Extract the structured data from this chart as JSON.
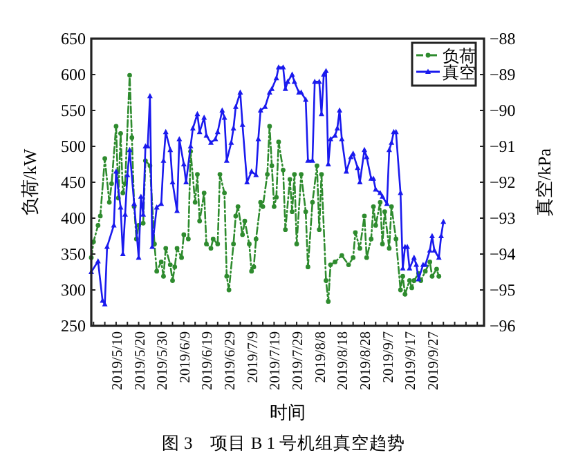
{
  "chart_data": {
    "type": "line",
    "title": "图 3　项目 B 1 号机组真空趋势",
    "xlabel": "时间",
    "ylabel": "负荷/kW",
    "y2label": "真空/kPa",
    "xlim": [
      "2019-04-29",
      "2019-10-20"
    ],
    "xticks": [
      {
        "value": "2019-04-30",
        "label": null
      },
      {
        "value": "2019-05-05",
        "label": null
      },
      {
        "value": "2019-05-10",
        "label": "2019/5/10"
      },
      {
        "value": "2019-05-15",
        "label": null
      },
      {
        "value": "2019-05-20",
        "label": "2019/5/20"
      },
      {
        "value": "2019-05-25",
        "label": null
      },
      {
        "value": "2019-05-30",
        "label": "2019/5/30"
      },
      {
        "value": "2019-06-04",
        "label": null
      },
      {
        "value": "2019-06-09",
        "label": "2019/6/9"
      },
      {
        "value": "2019-06-14",
        "label": null
      },
      {
        "value": "2019-06-19",
        "label": "2019/6/19"
      },
      {
        "value": "2019-06-24",
        "label": null
      },
      {
        "value": "2019-06-29",
        "label": "2019/6/29"
      },
      {
        "value": "2019-07-04",
        "label": null
      },
      {
        "value": "2019-07-09",
        "label": "2019/7/9"
      },
      {
        "value": "2019-07-14",
        "label": null
      },
      {
        "value": "2019-07-19",
        "label": "2019/7/19"
      },
      {
        "value": "2019-07-24",
        "label": null
      },
      {
        "value": "2019-07-29",
        "label": "2019/7/29"
      },
      {
        "value": "2019-08-03",
        "label": null
      },
      {
        "value": "2019-08-08",
        "label": "2019/8/8"
      },
      {
        "value": "2019-08-13",
        "label": null
      },
      {
        "value": "2019-08-18",
        "label": "2019/8/18"
      },
      {
        "value": "2019-08-23",
        "label": null
      },
      {
        "value": "2019-08-28",
        "label": "2019/8/28"
      },
      {
        "value": "2019-09-02",
        "label": null
      },
      {
        "value": "2019-09-07",
        "label": "2019/9/7"
      },
      {
        "value": "2019-09-12",
        "label": null
      },
      {
        "value": "2019-09-17",
        "label": "2019/9/17"
      },
      {
        "value": "2019-09-22",
        "label": null
      },
      {
        "value": "2019-09-27",
        "label": "2019/9/27"
      },
      {
        "value": "2019-10-02",
        "label": null
      },
      {
        "value": "2019-10-07",
        "label": null
      },
      {
        "value": "2019-10-12",
        "label": null
      },
      {
        "value": "2019-10-17",
        "label": null
      }
    ],
    "ylim": [
      250,
      650
    ],
    "yticks": [
      250,
      300,
      350,
      400,
      450,
      500,
      550,
      600,
      650
    ],
    "y2lim": [
      -96,
      -88
    ],
    "y2ticks": [
      {
        "value": -96,
        "label": "−96"
      },
      {
        "value": -95,
        "label": "−95"
      },
      {
        "value": -94,
        "label": "−94"
      },
      {
        "value": -93,
        "label": "−93"
      },
      {
        "value": -92,
        "label": "−92"
      },
      {
        "value": -91,
        "label": "−91"
      },
      {
        "value": -90,
        "label": "−90"
      },
      {
        "value": -89,
        "label": "−89"
      },
      {
        "value": -88,
        "label": "−88"
      }
    ],
    "legend": "top right",
    "grid": false,
    "series": [
      {
        "name": "负荷",
        "color": "#2e8b2e",
        "line_style": "dashed",
        "marker": "circle",
        "x": [
          "2019-04-29",
          "2019-04-30",
          "2019-05-02",
          "2019-05-03",
          "2019-05-05",
          "2019-05-07",
          "2019-05-08",
          "2019-05-10",
          "2019-05-11",
          "2019-05-12",
          "2019-05-13",
          "2019-05-14",
          "2019-05-16",
          "2019-05-17",
          "2019-05-18",
          "2019-05-19",
          "2019-05-20",
          "2019-05-22",
          "2019-05-23",
          "2019-05-25",
          "2019-05-27",
          "2019-05-28",
          "2019-05-30",
          "2019-05-31",
          "2019-06-01",
          "2019-06-03",
          "2019-06-04",
          "2019-06-05",
          "2019-06-06",
          "2019-06-08",
          "2019-06-09",
          "2019-06-11",
          "2019-06-12",
          "2019-06-14",
          "2019-06-15",
          "2019-06-16",
          "2019-06-18",
          "2019-06-19",
          "2019-06-21",
          "2019-06-22",
          "2019-06-24",
          "2019-06-25",
          "2019-06-27",
          "2019-06-28",
          "2019-06-29",
          "2019-07-01",
          "2019-07-02",
          "2019-07-03",
          "2019-07-05",
          "2019-07-06",
          "2019-07-08",
          "2019-07-09",
          "2019-07-10",
          "2019-07-11",
          "2019-07-13",
          "2019-07-14",
          "2019-07-16",
          "2019-07-17",
          "2019-07-18",
          "2019-07-19",
          "2019-07-20",
          "2019-07-21",
          "2019-07-23",
          "2019-07-24",
          "2019-07-26",
          "2019-07-27",
          "2019-07-28",
          "2019-07-29",
          "2019-07-31",
          "2019-08-02",
          "2019-08-03",
          "2019-08-05",
          "2019-08-07",
          "2019-08-08",
          "2019-08-09",
          "2019-08-11",
          "2019-08-12",
          "2019-08-13",
          "2019-08-15",
          "2019-08-18",
          "2019-08-21",
          "2019-08-23",
          "2019-08-24",
          "2019-08-26",
          "2019-08-28",
          "2019-08-29",
          "2019-08-31",
          "2019-09-01",
          "2019-09-02",
          "2019-09-04",
          "2019-09-05",
          "2019-09-06",
          "2019-09-08",
          "2019-09-09",
          "2019-09-11",
          "2019-09-13",
          "2019-09-14",
          "2019-09-15",
          "2019-09-17",
          "2019-09-18",
          "2019-09-19",
          "2019-09-21",
          "2019-09-22",
          "2019-09-24",
          "2019-09-26",
          "2019-09-27",
          "2019-09-29",
          "2019-09-30"
        ],
        "values": [
          345,
          367,
          390,
          403,
          483,
          422,
          448,
          528,
          428,
          518,
          435,
          448,
          599,
          512,
          416,
          371,
          390,
          393,
          480,
          473,
          364,
          326,
          339,
          319,
          358,
          335,
          313,
          332,
          358,
          345,
          377,
          371,
          493,
          422,
          461,
          396,
          435,
          364,
          358,
          371,
          364,
          461,
          435,
          319,
          300,
          364,
          403,
          416,
          377,
          396,
          364,
          326,
          332,
          371,
          422,
          416,
          461,
          528,
          473,
          416,
          429,
          506,
          467,
          384,
          454,
          409,
          461,
          364,
          461,
          409,
          332,
          422,
          473,
          384,
          461,
          313,
          284,
          335,
          339,
          348,
          335,
          345,
          380,
          358,
          403,
          345,
          371,
          416,
          390,
          422,
          364,
          409,
          358,
          416,
          371,
          300,
          319,
          294,
          313,
          303,
          313,
          323,
          313,
          326,
          339,
          319,
          329,
          319
        ]
      },
      {
        "name": "真空",
        "color": "#1a1aee",
        "line_style": "solid",
        "marker": "triangle",
        "axis": "y2",
        "x": [
          "2019-04-29",
          "2019-05-02",
          "2019-05-04",
          "2019-05-05",
          "2019-05-06",
          "2019-05-09",
          "2019-05-10",
          "2019-05-12",
          "2019-05-13",
          "2019-05-14",
          "2019-05-15",
          "2019-05-16",
          "2019-05-18",
          "2019-05-20",
          "2019-05-21",
          "2019-05-22",
          "2019-05-23",
          "2019-05-24",
          "2019-05-25",
          "2019-05-26",
          "2019-05-28",
          "2019-05-30",
          "2019-05-31",
          "2019-06-01",
          "2019-06-03",
          "2019-06-04",
          "2019-06-06",
          "2019-06-07",
          "2019-06-09",
          "2019-06-10",
          "2019-06-12",
          "2019-06-13",
          "2019-06-15",
          "2019-06-16",
          "2019-06-18",
          "2019-06-19",
          "2019-06-21",
          "2019-06-23",
          "2019-06-24",
          "2019-06-26",
          "2019-06-27",
          "2019-06-28",
          "2019-06-30",
          "2019-07-01",
          "2019-07-02",
          "2019-07-04",
          "2019-07-05",
          "2019-07-07",
          "2019-07-09",
          "2019-07-11",
          "2019-07-12",
          "2019-07-13",
          "2019-07-15",
          "2019-07-17",
          "2019-07-18",
          "2019-07-20",
          "2019-07-21",
          "2019-07-23",
          "2019-07-24",
          "2019-07-25",
          "2019-07-27",
          "2019-07-28",
          "2019-07-30",
          "2019-07-31",
          "2019-08-02",
          "2019-08-03",
          "2019-08-05",
          "2019-08-06",
          "2019-08-08",
          "2019-08-09",
          "2019-08-10",
          "2019-08-11",
          "2019-08-12",
          "2019-08-13",
          "2019-08-15",
          "2019-08-16",
          "2019-08-17",
          "2019-08-18",
          "2019-08-20",
          "2019-08-22",
          "2019-08-23",
          "2019-08-25",
          "2019-08-26",
          "2019-08-28",
          "2019-08-29",
          "2019-08-31",
          "2019-09-01",
          "2019-09-02",
          "2019-09-04",
          "2019-09-05",
          "2019-09-07",
          "2019-09-08",
          "2019-09-09",
          "2019-09-10",
          "2019-09-11",
          "2019-09-13",
          "2019-09-14",
          "2019-09-15",
          "2019-09-16",
          "2019-09-17",
          "2019-09-19",
          "2019-09-20",
          "2019-09-21",
          "2019-09-23",
          "2019-09-24",
          "2019-09-26",
          "2019-09-27",
          "2019-09-28",
          "2019-09-30",
          "2019-10-01",
          "2019-10-02"
        ],
        "values": [
          -94.5,
          -94.2,
          -95.3,
          -95.4,
          -93.8,
          -93.2,
          -91.7,
          -92.7,
          -94.0,
          -92.9,
          -91.8,
          -91.1,
          -92.6,
          -94.1,
          -92.4,
          -92.9,
          -91.0,
          -91.0,
          -89.6,
          -93.8,
          -92.7,
          -92.6,
          -91.4,
          -90.6,
          -91.1,
          -92.0,
          -92.8,
          -90.8,
          -91.5,
          -92.0,
          -91.0,
          -90.5,
          -90.1,
          -90.6,
          -90.2,
          -90.7,
          -90.9,
          -90.8,
          -90.6,
          -90.0,
          -90.2,
          -91.4,
          -90.9,
          -90.5,
          -89.9,
          -89.5,
          -90.4,
          -92.0,
          -91.7,
          -91.8,
          -90.8,
          -90.0,
          -89.9,
          -89.5,
          -89.4,
          -89.1,
          -88.8,
          -88.8,
          -89.4,
          -89.2,
          -89.0,
          -89.2,
          -89.5,
          -89.5,
          -89.7,
          -91.4,
          -91.4,
          -89.2,
          -89.2,
          -90.1,
          -89.0,
          -88.9,
          -91.5,
          -90.8,
          -90.7,
          -90.5,
          -90.0,
          -90.8,
          -91.7,
          -91.3,
          -91.2,
          -91.6,
          -92.0,
          -91.1,
          -91.3,
          -91.9,
          -91.9,
          -92.2,
          -92.3,
          -92.4,
          -92.6,
          -91.1,
          -90.9,
          -90.6,
          -90.6,
          -92.3,
          -94.4,
          -93.8,
          -93.8,
          -94.4,
          -94.1,
          -94.3,
          -94.7,
          -94.3,
          -94.3,
          -93.9,
          -93.5,
          -93.9,
          -94.1,
          -93.5,
          -93.1
        ]
      }
    ]
  }
}
